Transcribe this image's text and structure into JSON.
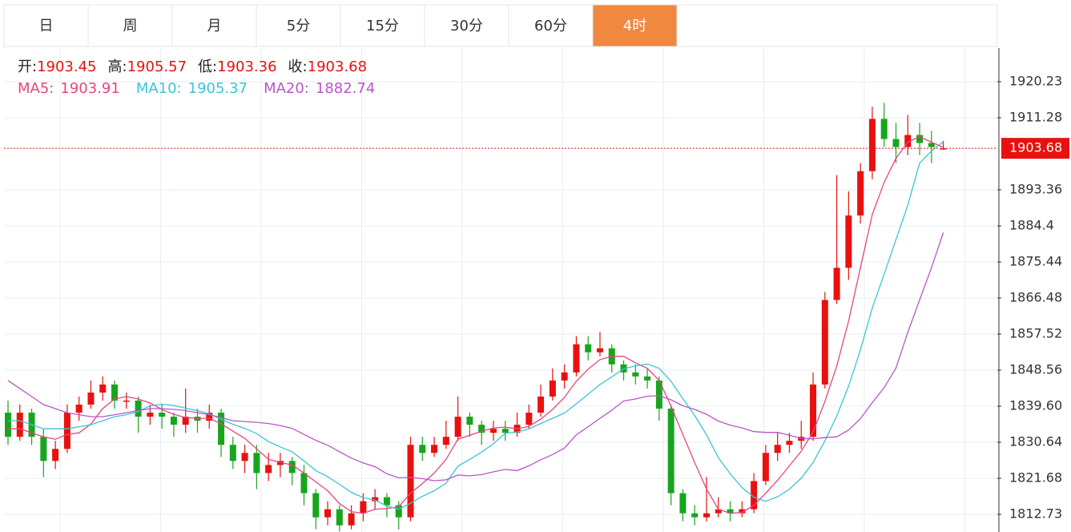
{
  "tabs": [
    "日",
    "周",
    "月",
    "5分",
    "15分",
    "30分",
    "60分",
    "4时"
  ],
  "active_tab": 7,
  "chart_data": {
    "type": "candlestick",
    "ohlc_labels": [
      "开:",
      "高:",
      "低:",
      "收:"
    ],
    "up_color": "#e8110f",
    "down_color": "#18a51d",
    "ylim": [
      1808.35,
      1928.59
    ],
    "yticks": [
      1812.73,
      1821.68,
      1830.64,
      {
        "value": 1839.6,
        "label": "1839.60"
      },
      1848.56,
      1857.52,
      1866.48,
      1875.44,
      1884.4,
      1893.36,
      1911.28,
      1920.23
    ],
    "candles": [
      [
        1838,
        1841,
        1830,
        1832
      ],
      [
        1832,
        1840,
        1831,
        1838
      ],
      [
        1838,
        1839,
        1830,
        1832
      ],
      [
        1832,
        1834,
        1822,
        1826
      ],
      [
        1826,
        1831,
        1824,
        1829
      ],
      [
        1829,
        1840,
        1828,
        1838
      ],
      [
        1838,
        1842,
        1836,
        1840
      ],
      [
        1840,
        1846,
        1839,
        1843
      ],
      [
        1843,
        1847,
        1841,
        1845
      ],
      [
        1845,
        1846,
        1839,
        1841
      ],
      [
        1841,
        1843,
        1839,
        1841
      ],
      [
        1841,
        1842,
        1833,
        1837
      ],
      [
        1837,
        1840,
        1835,
        1838
      ],
      [
        1838,
        1840,
        1834,
        1837
      ],
      [
        1837,
        1838,
        1832,
        1835
      ],
      [
        1835,
        1844,
        1833,
        1837
      ],
      [
        1837,
        1839,
        1833,
        1836
      ],
      [
        1836,
        1840,
        1834,
        1838
      ],
      [
        1838,
        1839,
        1827,
        1830
      ],
      [
        1830,
        1832,
        1824,
        1826
      ],
      [
        1826,
        1830,
        1823,
        1828
      ],
      [
        1828,
        1830,
        1819,
        1823
      ],
      [
        1823,
        1828,
        1821,
        1825
      ],
      [
        1825,
        1828,
        1822,
        1826
      ],
      [
        1826,
        1827,
        1820,
        1823
      ],
      [
        1823,
        1825,
        1815,
        1818
      ],
      [
        1818,
        1819,
        1809,
        1812
      ],
      [
        1812,
        1816,
        1810,
        1814
      ],
      [
        1814,
        1815,
        1808.5,
        1810
      ],
      [
        1810,
        1815,
        1809,
        1813
      ],
      [
        1813,
        1818,
        1811,
        1816
      ],
      [
        1816,
        1819,
        1814,
        1817
      ],
      [
        1817,
        1818,
        1812,
        1815
      ],
      [
        1815,
        1816,
        1809,
        1812
      ],
      [
        1812,
        1832,
        1811,
        1830
      ],
      [
        1830,
        1832,
        1826,
        1828
      ],
      [
        1828,
        1832,
        1827,
        1830
      ],
      [
        1830,
        1836,
        1829,
        1832
      ],
      [
        1832,
        1842,
        1831,
        1837
      ],
      [
        1837,
        1838,
        1832,
        1835
      ],
      [
        1835,
        1836,
        1830,
        1833
      ],
      [
        1833,
        1836,
        1831,
        1834
      ],
      [
        1834,
        1836,
        1831,
        1833
      ],
      [
        1833,
        1838,
        1832,
        1835
      ],
      [
        1835,
        1840,
        1834,
        1838
      ],
      [
        1838,
        1845,
        1837,
        1842
      ],
      [
        1842,
        1849,
        1841,
        1846
      ],
      [
        1846,
        1850,
        1844,
        1848
      ],
      [
        1848,
        1857,
        1847,
        1855
      ],
      [
        1855,
        1857,
        1851,
        1853
      ],
      [
        1853,
        1858,
        1852,
        1854
      ],
      [
        1854,
        1855,
        1848,
        1850
      ],
      [
        1850,
        1851,
        1846,
        1848
      ],
      [
        1848,
        1850,
        1845,
        1847
      ],
      [
        1847,
        1849,
        1844,
        1846
      ],
      [
        1846,
        1847,
        1836,
        1839
      ],
      [
        1839,
        1840,
        1815,
        1818
      ],
      [
        1818,
        1819,
        1811,
        1813
      ],
      [
        1813,
        1815,
        1810,
        1812
      ],
      [
        1812,
        1822,
        1811,
        1813
      ],
      [
        1813,
        1817,
        1812,
        1814
      ],
      [
        1814,
        1816,
        1811,
        1813
      ],
      [
        1813,
        1816,
        1812,
        1814
      ],
      [
        1814,
        1823,
        1813,
        1821
      ],
      [
        1821,
        1830,
        1820,
        1828
      ],
      [
        1828,
        1833,
        1826,
        1830
      ],
      [
        1830,
        1833,
        1828,
        1831
      ],
      [
        1831,
        1836,
        1829,
        1832
      ],
      [
        1832,
        1848,
        1831,
        1845
      ],
      [
        1845,
        1868,
        1844,
        1866
      ],
      [
        1866,
        1897,
        1865,
        1874
      ],
      [
        1874,
        1893,
        1871,
        1887
      ],
      [
        1887,
        1900,
        1885,
        1898
      ],
      [
        1898,
        1914,
        1896,
        1911
      ],
      [
        1911,
        1915,
        1904,
        1906
      ],
      [
        1906,
        1910,
        1900,
        1904
      ],
      [
        1904,
        1912,
        1902,
        1907
      ],
      [
        1907,
        1910,
        1902,
        1905
      ],
      [
        1905,
        1908,
        1900,
        1904
      ],
      [
        1903.45,
        1905.57,
        1903.36,
        1903.68
      ]
    ],
    "ma": [
      {
        "name": "MA5:",
        "color": "#e8457c",
        "values": [
          1834,
          1834,
          1833,
          1832,
          1831.4,
          1832.6,
          1833,
          1835.2,
          1839,
          1841.4,
          1842,
          1841.4,
          1840.4,
          1838.8,
          1837.6,
          1836.8,
          1836.6,
          1836.6,
          1835.2,
          1833.4,
          1831.6,
          1829,
          1826.4,
          1825.6,
          1825,
          1823,
          1820.8,
          1818.6,
          1815.4,
          1813.4,
          1813,
          1814,
          1814.2,
          1814.6,
          1818,
          1820.4,
          1823,
          1826.4,
          1831.4,
          1832.4,
          1833.4,
          1834.2,
          1834.4,
          1834,
          1834.6,
          1836.4,
          1838.8,
          1841.8,
          1845.8,
          1848.8,
          1851.2,
          1852,
          1852,
          1850.4,
          1849,
          1846,
          1839.6,
          1832.6,
          1825.6,
          1819,
          1814,
          1813,
          1813.2,
          1815,
          1818,
          1821.2,
          1824.8,
          1828.4,
          1833.2,
          1840.8,
          1849.6,
          1860.8,
          1874,
          1887.2,
          1895.2,
          1901.2,
          1905.2,
          1906.6,
          1905.2,
          1903.91
        ]
      },
      {
        "name": "MA10:",
        "color": "#3bc4d6",
        "values": [
          1836,
          1836,
          1835,
          1834,
          1834,
          1834,
          1834.5,
          1835,
          1836,
          1837,
          1837.5,
          1838.3,
          1839.7,
          1840.1,
          1839.8,
          1839.1,
          1838.5,
          1837.7,
          1836.4,
          1835.1,
          1834.1,
          1832.8,
          1830.8,
          1829.5,
          1828.3,
          1826,
          1823.6,
          1822.1,
          1820.2,
          1818.2,
          1816.9,
          1816.3,
          1814.8,
          1814,
          1815.5,
          1817.2,
          1818.6,
          1820.5,
          1824.7,
          1826.4,
          1828.2,
          1830.3,
          1832.9,
          1833.2,
          1834,
          1835.3,
          1836.6,
          1837.9,
          1840.2,
          1842.6,
          1845,
          1846.9,
          1848.9,
          1849.6,
          1850.1,
          1849,
          1845.8,
          1841.5,
          1837.3,
          1832.5,
          1826.8,
          1822.8,
          1819.4,
          1817,
          1816,
          1817.1,
          1819,
          1821.7,
          1825.6,
          1831,
          1837.2,
          1844.6,
          1853.6,
          1864,
          1872.4,
          1881,
          1889.6,
          1900,
          1903,
          1905.37
        ]
      },
      {
        "name": "MA20:",
        "color": "#b855c8",
        "values": [
          1846,
          1844,
          1842,
          1840,
          1839,
          1838,
          1837.5,
          1837,
          1837,
          1837.5,
          1838,
          1838.5,
          1839,
          1839,
          1838.8,
          1838.5,
          1838,
          1837.5,
          1836.8,
          1836,
          1835.8,
          1835.6,
          1835.3,
          1834.8,
          1834.1,
          1832.6,
          1831.1,
          1829.9,
          1828.3,
          1826.7,
          1825.5,
          1824.6,
          1822.8,
          1821.8,
          1821.9,
          1821.6,
          1821.1,
          1821.3,
          1822.5,
          1822.3,
          1822.6,
          1823.3,
          1823.9,
          1823.6,
          1824.8,
          1826.3,
          1827.6,
          1829.2,
          1832.5,
          1834.5,
          1836.6,
          1838.6,
          1840.9,
          1841.4,
          1842.1,
          1842.2,
          1841.2,
          1839.7,
          1838.8,
          1837.6,
          1835.9,
          1834.9,
          1834.2,
          1833.3,
          1833.1,
          1833.1,
          1832.4,
          1831.6,
          1831.5,
          1831.8,
          1832,
          1833.7,
          1836.5,
          1840.5,
          1844.2,
          1849.1,
          1858,
          1866,
          1874,
          1882.74
        ]
      }
    ]
  }
}
